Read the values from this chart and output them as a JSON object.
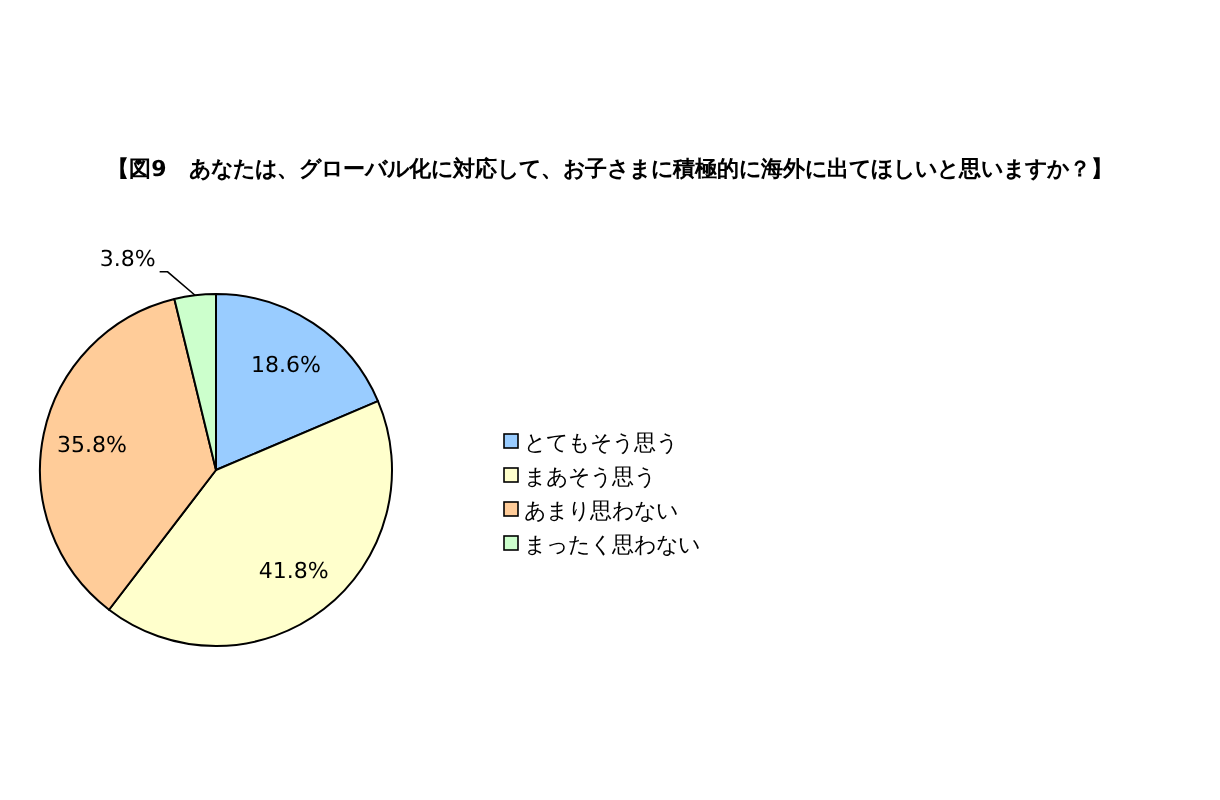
{
  "chart_data": {
    "type": "pie",
    "title": "【図9　あなたは、グローバル化に対応して、お子さまに積極的に海外に出てほしいと思いますか？】",
    "categories": [
      "とてもそう思う",
      "まあそう思う",
      "あまり思わない",
      "まったく思わない"
    ],
    "values": [
      18.6,
      41.8,
      35.8,
      3.8
    ],
    "colors": [
      "#99ccff",
      "#ffffcc",
      "#ffcc99",
      "#ccffcc"
    ],
    "value_labels": [
      "18.6%",
      "41.8%",
      "35.8%",
      "3.8%"
    ],
    "legend": "right"
  }
}
